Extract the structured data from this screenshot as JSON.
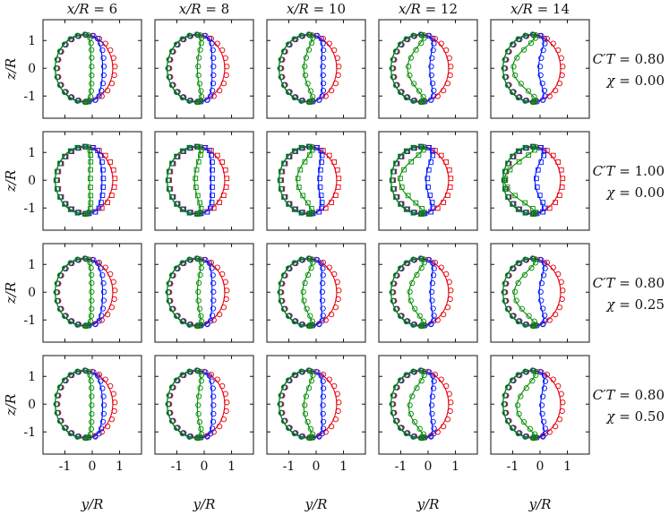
{
  "chart_data": {
    "type": "scatter",
    "layout": "4 rows x 5 columns small multiples",
    "columns": [
      {
        "var": "x/R",
        "value": "6"
      },
      {
        "var": "x/R",
        "value": "8"
      },
      {
        "var": "x/R",
        "value": "10"
      },
      {
        "var": "x/R",
        "value": "12"
      },
      {
        "var": "x/R",
        "value": "14"
      }
    ],
    "rows": [
      {
        "ct_label": "C′T",
        "ct_value": "0.80",
        "chi_label": "χ",
        "chi_value": "0.00",
        "marker": "circle"
      },
      {
        "ct_label": "C′T",
        "ct_value": "1.00",
        "chi_label": "χ",
        "chi_value": "0.00",
        "marker": "square"
      },
      {
        "ct_label": "C′T",
        "ct_value": "0.80",
        "chi_label": "χ",
        "chi_value": "0.25",
        "marker": "circle"
      },
      {
        "ct_label": "C′T",
        "ct_value": "0.80",
        "chi_label": "χ",
        "chi_value": "0.50",
        "marker": "circle"
      }
    ],
    "xlabel": "y/R",
    "ylabel": "z/R",
    "xlim": [
      -1.8,
      1.8
    ],
    "ylim": [
      -1.8,
      1.75
    ],
    "xticks": [
      -1,
      0,
      1
    ],
    "yticks": [
      -1,
      0,
      1
    ],
    "xtick_labels": [
      "-1",
      "0",
      "1"
    ],
    "ytick_labels": [
      "-1",
      "0",
      "1"
    ],
    "colors": {
      "red": "#e8000b",
      "blue": "#0015ff",
      "green": "#008c00",
      "frame": "#111111"
    },
    "series_colors": [
      "red",
      "blue",
      "green"
    ],
    "series_shape": {
      "red": {
        "left": -1.35,
        "right": 0.75,
        "top": 1.2,
        "bottom": -1.2
      },
      "blue": {
        "left": -1.35,
        "right_center": 0.4,
        "top": 1.2,
        "bottom": -1.2
      },
      "green": {
        "left": -1.35,
        "right_center": 0.0,
        "top": 1.22,
        "bottom": -1.22
      }
    },
    "cusp_depth": [
      [
        0.05,
        0.25,
        0.45,
        0.75,
        1.0
      ],
      [
        0.1,
        0.35,
        0.7,
        1.05,
        1.3
      ],
      [
        0.05,
        0.25,
        0.5,
        0.7,
        0.95
      ],
      [
        0.05,
        0.25,
        0.45,
        0.7,
        0.85
      ]
    ]
  }
}
